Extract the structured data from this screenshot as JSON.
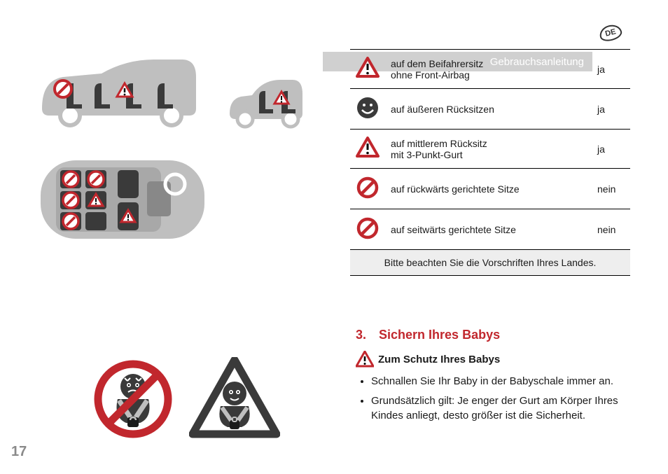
{
  "header": {
    "lang": "DE",
    "title": "Gebrauchsanleitung"
  },
  "icons": {
    "warning": {
      "stroke": "#c1272d",
      "fill": "#fff",
      "mark": "#000"
    },
    "prohibit": {
      "stroke": "#c1272d",
      "fill": "#fff"
    },
    "smiley": {
      "fill": "#3a3a3a"
    },
    "car": {
      "fill": "#bfbfbf"
    },
    "seat": {
      "fill": "#3a3a3a"
    }
  },
  "seat_table": {
    "rows": [
      {
        "icon": "warning",
        "text": "auf dem Beifahrersitz\nohne Front-Airbag",
        "answer": "ja"
      },
      {
        "icon": "smiley",
        "text": "auf äußeren Rücksitzen",
        "answer": "ja"
      },
      {
        "icon": "warning",
        "text": "auf mittlerem Rücksitz\nmit 3-Punkt-Gurt",
        "answer": "ja"
      },
      {
        "icon": "prohibit",
        "text": "auf rückwärts gerichtete Sitze",
        "answer": "nein"
      },
      {
        "icon": "prohibit",
        "text": "auf seitwärts gerichtete Sitze",
        "answer": "nein"
      }
    ],
    "footnote": "Bitte beachten Sie die Vorschriften Ihres Landes."
  },
  "section": {
    "num": "3.",
    "title": "Sichern Ihres Babys",
    "sub": "Zum Schutz Ihres Babys",
    "bullets": [
      "Schnallen Sie Ihr Baby in der Babyschale immer an.",
      "Grundsätzlich gilt: Je enger der Gurt am Körper Ihres Kindes anliegt, desto größer ist die Sicherheit."
    ]
  },
  "page_number": "17"
}
